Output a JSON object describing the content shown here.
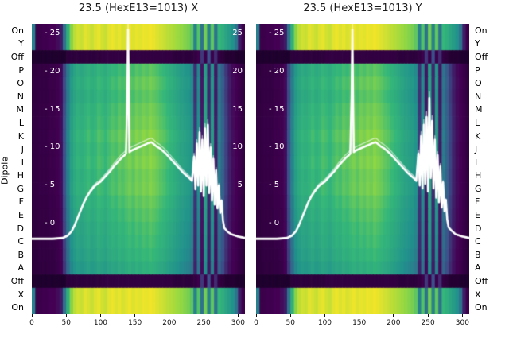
{
  "titles": [
    "23.5 (HexE13=1013) X",
    "23.5 (HexE13=1013) Y"
  ],
  "axis": {
    "dipole_label": "Dipole",
    "row_labels": [
      "On",
      "Y",
      "Off",
      "P",
      "O",
      "N",
      "M",
      "L",
      "K",
      "J",
      "I",
      "H",
      "G",
      "F",
      "E",
      "D",
      "C",
      "B",
      "A",
      "Off",
      "X",
      "On"
    ],
    "x_ticks": [
      0,
      50,
      100,
      150,
      200,
      250,
      300
    ],
    "y_ticks_left": [
      "- 25",
      "- 20",
      "- 15",
      "- 10",
      "- 5",
      "- 0"
    ],
    "y_tick_values": [
      25,
      20,
      15,
      10,
      5,
      0
    ],
    "y_ticks_right": [
      "25",
      "20",
      "15",
      "10",
      "5"
    ],
    "y_tick_right_values": [
      25,
      20,
      15,
      10,
      5
    ]
  },
  "chart_data": {
    "type": "heatmap",
    "subtype": "heatmap-with-line-overlay",
    "x_range": [
      0,
      310
    ],
    "x_bin_size": 5,
    "line_axis_ticks": [
      0,
      5,
      10,
      15,
      20,
      25
    ],
    "line_color": "#ffffff",
    "rows": [
      "On",
      "Y",
      "Off",
      "P",
      "O",
      "N",
      "M",
      "L",
      "K",
      "J",
      "I",
      "H",
      "G",
      "F",
      "E",
      "D",
      "C",
      "B",
      "A",
      "Off",
      "X",
      "On"
    ],
    "row_types": [
      "bright",
      "bright",
      "dark",
      "mid",
      "mid",
      "mid",
      "mid",
      "mid",
      "mid",
      "mid",
      "mid",
      "mid",
      "mid",
      "mid",
      "mid",
      "mid",
      "mid",
      "mid",
      "mid",
      "dark",
      "bright",
      "bright"
    ],
    "row_gains": [
      1.0,
      1.0,
      1.0,
      0.93,
      0.97,
      0.94,
      0.98,
      1.0,
      1.03,
      1.0,
      1.02,
      0.99,
      1.0,
      0.96,
      0.93,
      0.9,
      0.88,
      0.85,
      0.8,
      1.0,
      1.0,
      1.0
    ],
    "profiles": {
      "mid": [
        0.06,
        0.06,
        0.07,
        0.07,
        0.07,
        0.08,
        0.08,
        0.09,
        0.12,
        0.25,
        0.4,
        0.52,
        0.58,
        0.62,
        0.6,
        0.63,
        0.66,
        0.62,
        0.64,
        0.68,
        0.66,
        0.63,
        0.67,
        0.7,
        0.68,
        0.72,
        0.7,
        0.73,
        0.75,
        0.72,
        0.76,
        0.74,
        0.77,
        0.75,
        0.78,
        0.76,
        0.74,
        0.71,
        0.69,
        0.66,
        0.63,
        0.6,
        0.57,
        0.54,
        0.52,
        0.5,
        0.46,
        0.2,
        0.44,
        0.15,
        0.55,
        0.18,
        0.5,
        0.15,
        0.38,
        0.3,
        0.22,
        0.16,
        0.12,
        0.1,
        0.08,
        0.06
      ],
      "bright": [
        0.4,
        0.08,
        0.08,
        0.09,
        0.09,
        0.1,
        0.1,
        0.12,
        0.15,
        0.35,
        0.6,
        0.78,
        0.88,
        0.92,
        0.9,
        0.95,
        0.93,
        0.9,
        0.94,
        0.96,
        0.92,
        0.9,
        0.95,
        0.97,
        0.94,
        0.96,
        0.93,
        0.95,
        0.97,
        0.94,
        0.96,
        0.95,
        0.97,
        0.96,
        0.98,
        0.96,
        0.94,
        0.92,
        0.9,
        0.88,
        0.86,
        0.84,
        0.82,
        0.8,
        0.78,
        0.76,
        0.72,
        0.4,
        0.7,
        0.35,
        0.75,
        0.4,
        0.72,
        0.35,
        0.65,
        0.6,
        0.55,
        0.5,
        0.45,
        0.35,
        0.15,
        0.08
      ],
      "dark": [
        0.02,
        0.02,
        0.02,
        0.02,
        0.02,
        0.02,
        0.02,
        0.02,
        0.02,
        0.02,
        0.05,
        0.05,
        0.05,
        0.05,
        0.05,
        0.05,
        0.05,
        0.05,
        0.05,
        0.05,
        0.06,
        0.06,
        0.06,
        0.06,
        0.06,
        0.06,
        0.06,
        0.06,
        0.06,
        0.06,
        0.06,
        0.06,
        0.06,
        0.06,
        0.06,
        0.06,
        0.06,
        0.06,
        0.06,
        0.06,
        0.06,
        0.05,
        0.05,
        0.05,
        0.05,
        0.05,
        0.05,
        0.06,
        0.08,
        0.2,
        0.08,
        0.25,
        0.08,
        0.18,
        0.06,
        0.05,
        0.03,
        0.03,
        0.03,
        0.02,
        0.02,
        0.02
      ]
    },
    "colormap_stops": [
      [
        0,
        "#160124"
      ],
      [
        0.1,
        "#440154"
      ],
      [
        0.25,
        "#3b528b"
      ],
      [
        0.45,
        "#21918c"
      ],
      [
        0.65,
        "#35b779"
      ],
      [
        0.8,
        "#90d743"
      ],
      [
        1,
        "#fde725"
      ]
    ],
    "series": [
      {
        "name": "X",
        "points": [
          [
            0,
            -2
          ],
          [
            30,
            -2
          ],
          [
            45,
            -1.9
          ],
          [
            52,
            -1.6
          ],
          [
            58,
            -1.0
          ],
          [
            62,
            -0.3
          ],
          [
            66,
            0.6
          ],
          [
            70,
            1.5
          ],
          [
            75,
            2.6
          ],
          [
            80,
            3.5
          ],
          [
            85,
            4.2
          ],
          [
            90,
            4.8
          ],
          [
            95,
            5.2
          ],
          [
            100,
            5.5
          ],
          [
            105,
            6.0
          ],
          [
            110,
            6.5
          ],
          [
            115,
            7.0
          ],
          [
            120,
            7.6
          ],
          [
            125,
            8.1
          ],
          [
            130,
            8.6
          ],
          [
            135,
            9.0
          ],
          [
            137,
            9.2
          ],
          [
            139,
            17
          ],
          [
            140,
            25.5
          ],
          [
            141,
            17
          ],
          [
            142,
            9.4
          ],
          [
            145,
            9.6
          ],
          [
            150,
            9.8
          ],
          [
            155,
            10.0
          ],
          [
            160,
            10.2
          ],
          [
            165,
            10.4
          ],
          [
            170,
            10.6
          ],
          [
            174,
            10.7
          ],
          [
            178,
            10.4
          ],
          [
            182,
            10.1
          ],
          [
            186,
            9.9
          ],
          [
            190,
            9.6
          ],
          [
            195,
            9.2
          ],
          [
            200,
            8.7
          ],
          [
            205,
            8.2
          ],
          [
            210,
            7.7
          ],
          [
            215,
            7.2
          ],
          [
            220,
            6.7
          ],
          [
            225,
            6.3
          ],
          [
            230,
            5.9
          ],
          [
            233,
            5.6
          ],
          [
            236,
            8.8
          ],
          [
            238,
            4.5
          ],
          [
            240,
            10.5
          ],
          [
            242,
            5.0
          ],
          [
            244,
            12.0
          ],
          [
            246,
            4.2
          ],
          [
            248,
            11.0
          ],
          [
            250,
            3.6
          ],
          [
            252,
            12.5
          ],
          [
            254,
            5.0
          ],
          [
            256,
            13.0
          ],
          [
            258,
            4.0
          ],
          [
            260,
            10.0
          ],
          [
            262,
            3.0
          ],
          [
            264,
            8.5
          ],
          [
            266,
            2.5
          ],
          [
            268,
            7.0
          ],
          [
            270,
            2.0
          ],
          [
            272,
            5.0
          ],
          [
            274,
            1.4
          ],
          [
            276,
            3.0
          ],
          [
            278,
            0.4
          ],
          [
            280,
            -0.6
          ],
          [
            285,
            -1.1
          ],
          [
            290,
            -1.4
          ],
          [
            300,
            -1.7
          ],
          [
            310,
            -1.9
          ]
        ]
      },
      {
        "name": "Y",
        "points": [
          [
            0,
            -2
          ],
          [
            30,
            -2
          ],
          [
            45,
            -1.9
          ],
          [
            52,
            -1.6
          ],
          [
            58,
            -1.0
          ],
          [
            62,
            -0.3
          ],
          [
            66,
            0.6
          ],
          [
            70,
            1.5
          ],
          [
            75,
            2.6
          ],
          [
            80,
            3.5
          ],
          [
            85,
            4.2
          ],
          [
            90,
            4.8
          ],
          [
            95,
            5.2
          ],
          [
            100,
            5.5
          ],
          [
            105,
            6.0
          ],
          [
            110,
            6.5
          ],
          [
            115,
            7.0
          ],
          [
            120,
            7.6
          ],
          [
            125,
            8.1
          ],
          [
            130,
            8.6
          ],
          [
            135,
            9.0
          ],
          [
            137,
            9.2
          ],
          [
            139,
            17
          ],
          [
            140,
            25.5
          ],
          [
            141,
            17
          ],
          [
            142,
            9.4
          ],
          [
            145,
            9.6
          ],
          [
            150,
            9.8
          ],
          [
            155,
            10.0
          ],
          [
            160,
            10.2
          ],
          [
            165,
            10.4
          ],
          [
            170,
            10.6
          ],
          [
            174,
            10.7
          ],
          [
            178,
            10.4
          ],
          [
            182,
            10.1
          ],
          [
            186,
            9.9
          ],
          [
            190,
            9.6
          ],
          [
            195,
            9.2
          ],
          [
            200,
            8.7
          ],
          [
            205,
            8.2
          ],
          [
            210,
            7.7
          ],
          [
            215,
            7.2
          ],
          [
            220,
            6.7
          ],
          [
            225,
            6.3
          ],
          [
            230,
            5.9
          ],
          [
            233,
            5.6
          ],
          [
            236,
            9.2
          ],
          [
            238,
            5.0
          ],
          [
            240,
            11.5
          ],
          [
            242,
            4.6
          ],
          [
            244,
            13.0
          ],
          [
            246,
            5.2
          ],
          [
            248,
            14.0
          ],
          [
            250,
            4.2
          ],
          [
            252,
            16.5
          ],
          [
            254,
            6.0
          ],
          [
            256,
            13.5
          ],
          [
            258,
            4.6
          ],
          [
            260,
            11.0
          ],
          [
            262,
            3.4
          ],
          [
            264,
            9.0
          ],
          [
            266,
            2.8
          ],
          [
            268,
            7.5
          ],
          [
            270,
            2.1
          ],
          [
            272,
            5.4
          ],
          [
            274,
            1.6
          ],
          [
            276,
            3.1
          ],
          [
            278,
            0.5
          ],
          [
            280,
            -0.5
          ],
          [
            285,
            -1.0
          ],
          [
            290,
            -1.4
          ],
          [
            300,
            -1.7
          ],
          [
            310,
            -1.9
          ]
        ]
      }
    ]
  }
}
